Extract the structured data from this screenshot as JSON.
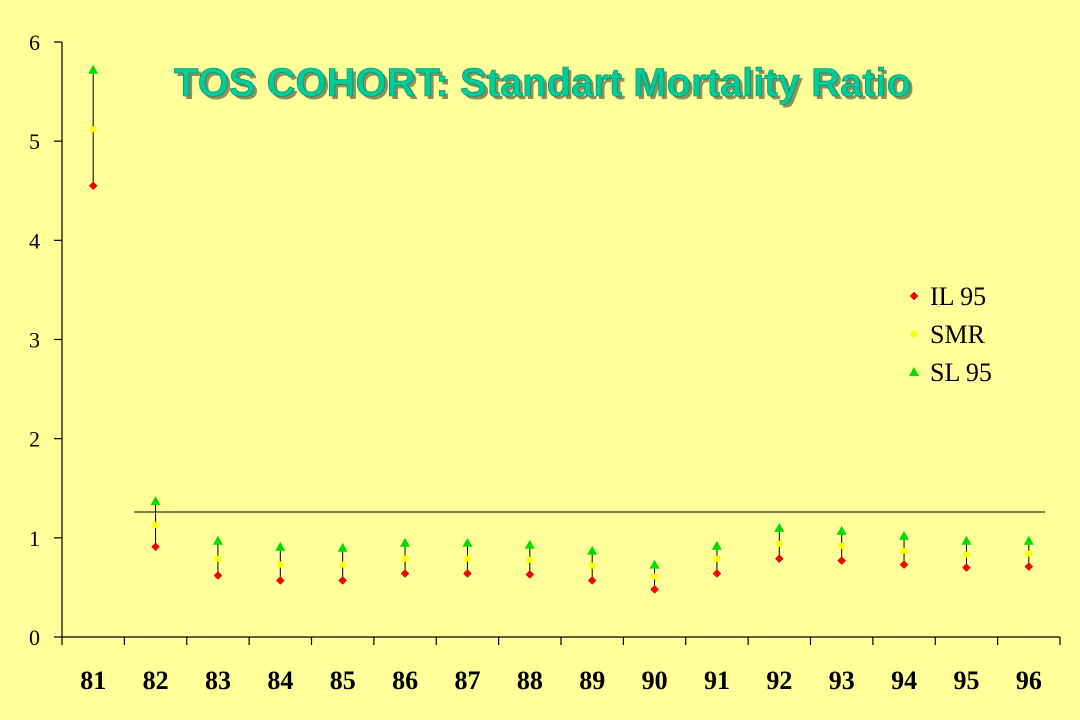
{
  "colors": {
    "background": "#FFFF99",
    "title": "#00CC99",
    "il95": "#FF0000",
    "smr": "#FFFF00",
    "sl95": "#00DD00",
    "axis": "#000000"
  },
  "chart_data": {
    "type": "scatter",
    "title": "TOS COHORT: Standart Mortality Ratio",
    "xlabel": "",
    "ylabel": "",
    "categories": [
      "81",
      "82",
      "83",
      "84",
      "85",
      "86",
      "87",
      "88",
      "89",
      "90",
      "91",
      "92",
      "93",
      "94",
      "95",
      "96"
    ],
    "ylim": [
      0,
      6
    ],
    "yticks": [
      "0",
      "1",
      "2",
      "3",
      "4",
      "5",
      "6"
    ],
    "reference_line": 1.26,
    "legend_position": "right",
    "series": [
      {
        "name": "IL 95",
        "marker": "diamond",
        "color": "#FF0000",
        "values": [
          4.55,
          0.91,
          0.62,
          0.57,
          0.57,
          0.64,
          0.64,
          0.63,
          0.57,
          0.48,
          0.64,
          0.79,
          0.77,
          0.73,
          0.7,
          0.71
        ]
      },
      {
        "name": "SMR",
        "marker": "square",
        "color": "#FFFF00",
        "values": [
          5.12,
          1.13,
          0.79,
          0.73,
          0.73,
          0.79,
          0.79,
          0.78,
          0.72,
          0.61,
          0.79,
          0.94,
          0.92,
          0.87,
          0.83,
          0.84
        ]
      },
      {
        "name": "SL 95",
        "marker": "triangle",
        "color": "#00DD00",
        "values": [
          5.72,
          1.37,
          0.97,
          0.91,
          0.9,
          0.95,
          0.95,
          0.93,
          0.87,
          0.73,
          0.92,
          1.1,
          1.07,
          1.02,
          0.97,
          0.97
        ]
      }
    ]
  }
}
